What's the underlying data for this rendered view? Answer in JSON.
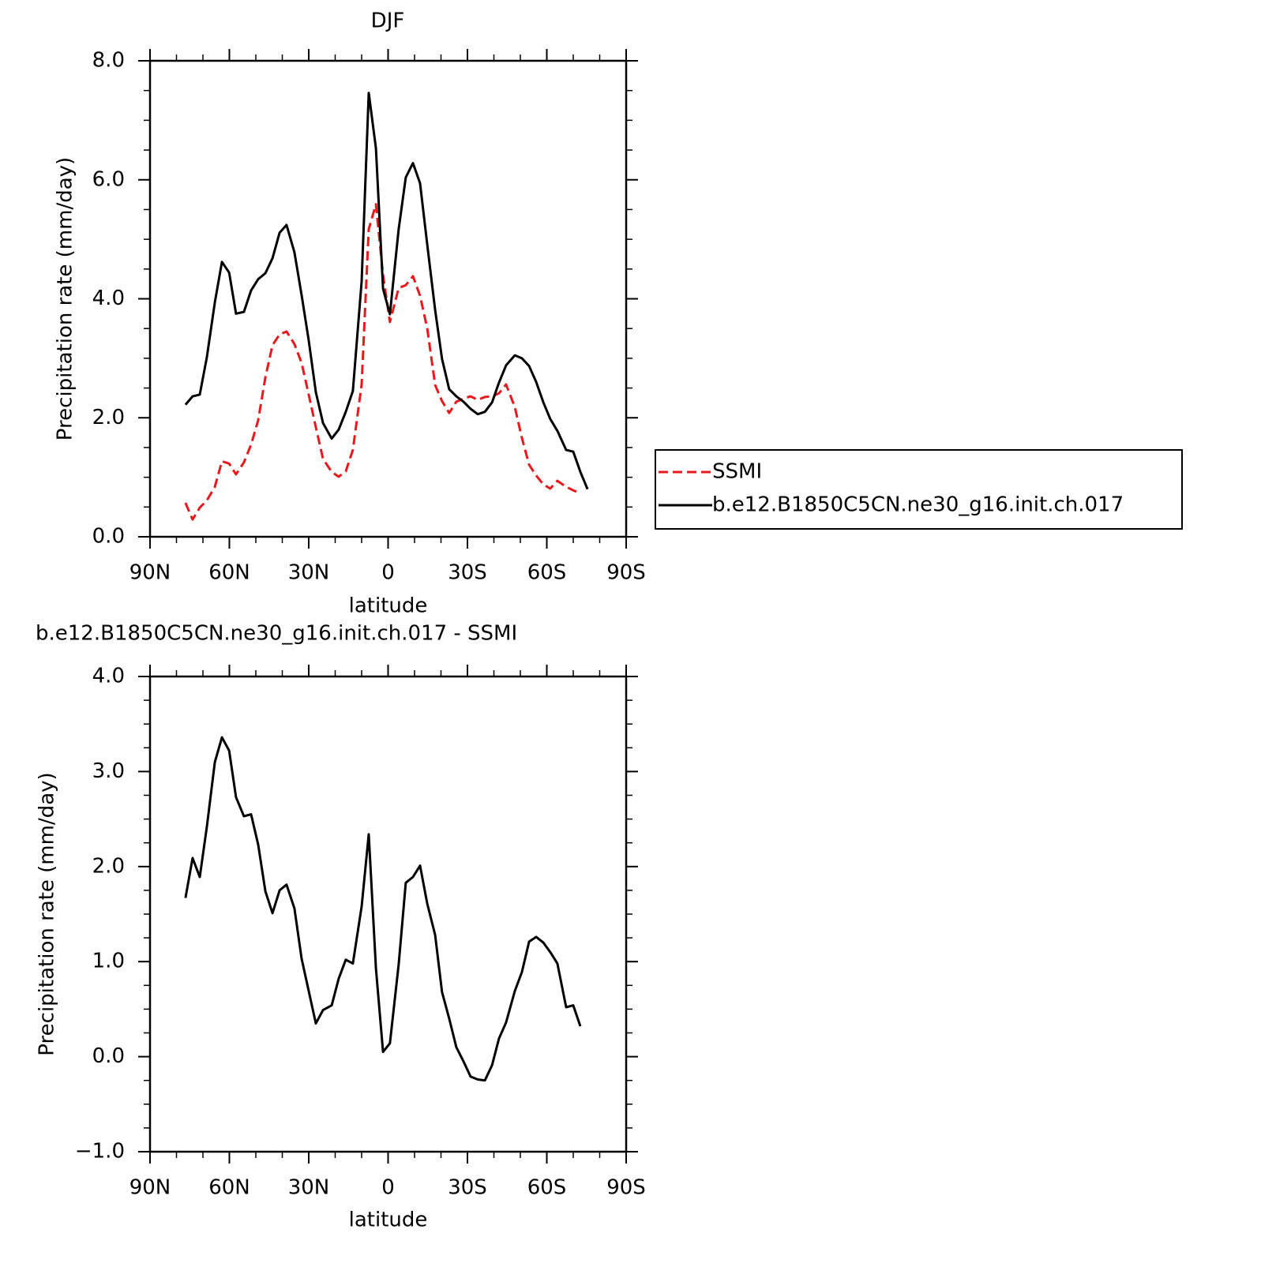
{
  "chart_data": [
    {
      "type": "line",
      "title": "DJF",
      "xlabel": "latitude",
      "ylabel": "Precipitation rate (mm/day)",
      "x": [
        76.6,
        73.9,
        71.2,
        68.5,
        65.5,
        62.8,
        60.1,
        57.5,
        54.5,
        51.8,
        49.1,
        46.4,
        43.7,
        41.0,
        38.4,
        35.4,
        32.7,
        30.0,
        27.3,
        24.6,
        21.3,
        18.7,
        16.0,
        13.3,
        10.0,
        7.3,
        4.6,
        1.9,
        -0.7,
        -4.0,
        -6.7,
        -9.4,
        -12.1,
        -14.8,
        -17.8,
        -20.4,
        -23.1,
        -25.8,
        -28.5,
        -31.2,
        -33.9,
        -36.6,
        -39.3,
        -41.9,
        -44.6,
        -47.9,
        -50.6,
        -53.3,
        -56.0,
        -58.7,
        -61.3,
        -64.0,
        -67.3,
        -70.0,
        -72.7,
        -75.4
      ],
      "series": [
        {
          "name": "SSMI",
          "color": "#e8191c",
          "dash": true,
          "values": [
            0.57,
            0.29,
            0.49,
            0.61,
            0.84,
            1.27,
            1.23,
            1.05,
            1.25,
            1.55,
            1.96,
            2.68,
            3.22,
            3.4,
            3.45,
            3.24,
            2.92,
            2.39,
            1.84,
            1.31,
            1.09,
            1.01,
            1.1,
            1.46,
            2.56,
            5.17,
            5.59,
            4.4,
            3.61,
            4.18,
            4.23,
            4.38,
            4.05,
            3.5,
            2.55,
            2.28,
            2.08,
            2.27,
            2.32,
            2.36,
            2.3,
            2.35,
            2.36,
            2.41,
            2.56,
            2.18,
            1.66,
            1.21,
            1.03,
            0.88,
            0.81,
            0.94,
            0.84,
            0.78,
            0.73,
            null
          ]
        },
        {
          "name": "b.e12.B1850C5CN.ne30_g16.init.ch.017",
          "color": "#000000",
          "dash": false,
          "values": [
            2.22,
            2.36,
            2.39,
            3.02,
            3.94,
            4.62,
            4.44,
            3.75,
            3.78,
            4.14,
            4.33,
            4.43,
            4.68,
            5.11,
            5.24,
            4.78,
            4.06,
            3.3,
            2.43,
            1.91,
            1.65,
            1.8,
            2.1,
            2.45,
            4.29,
            7.46,
            6.53,
            4.17,
            3.74,
            5.17,
            6.04,
            6.28,
            5.94,
            4.91,
            3.81,
            2.99,
            2.48,
            2.36,
            2.27,
            2.15,
            2.06,
            2.1,
            2.26,
            2.59,
            2.88,
            3.05,
            3.0,
            2.87,
            2.6,
            2.26,
            1.98,
            1.78,
            1.46,
            1.43,
            1.09,
            0.8
          ]
        }
      ],
      "xlim": [
        90,
        -90
      ],
      "xticks": [
        {
          "value": 90,
          "label": "90N"
        },
        {
          "value": 60,
          "label": "60N"
        },
        {
          "value": 30,
          "label": "30N"
        },
        0,
        {
          "value": -30,
          "label": "30S"
        },
        {
          "value": -60,
          "label": "60S"
        },
        {
          "value": -90,
          "label": "90S"
        }
      ],
      "ylim": [
        0,
        8
      ],
      "yticks": [
        {
          "value": 0,
          "label": "0.0"
        },
        {
          "value": 2,
          "label": "2.0"
        },
        {
          "value": 4,
          "label": "4.0"
        },
        {
          "value": 6,
          "label": "6.0"
        },
        {
          "value": 8,
          "label": "8.0"
        }
      ],
      "legend": "right"
    },
    {
      "type": "line",
      "title": "b.e12.B1850C5CN.ne30_g16.init.ch.017 - SSMI",
      "xlabel": "latitude",
      "ylabel": "Precipitation rate (mm/day)",
      "x": [
        76.6,
        73.9,
        71.2,
        68.5,
        65.5,
        62.8,
        60.1,
        57.5,
        54.5,
        51.8,
        49.1,
        46.4,
        43.7,
        41.0,
        38.4,
        35.4,
        32.7,
        30.0,
        27.3,
        24.6,
        21.3,
        18.7,
        16.0,
        13.3,
        10.0,
        7.3,
        4.6,
        1.9,
        -0.7,
        -4.0,
        -6.7,
        -9.4,
        -12.1,
        -14.8,
        -17.8,
        -20.4,
        -23.1,
        -25.8,
        -28.5,
        -31.2,
        -33.9,
        -36.6,
        -39.3,
        -41.9,
        -44.6,
        -47.9,
        -50.6,
        -53.3,
        -56.0,
        -58.7,
        -61.3,
        -64.0,
        -67.3,
        -70.0,
        -72.7,
        -75.4
      ],
      "series": [
        {
          "color": "#000000",
          "dash": false,
          "values": [
            1.67,
            2.09,
            1.89,
            2.42,
            3.1,
            3.36,
            3.22,
            2.73,
            2.53,
            2.55,
            2.23,
            1.74,
            1.51,
            1.75,
            1.81,
            1.56,
            1.03,
            0.69,
            0.35,
            0.49,
            0.54,
            0.82,
            1.02,
            0.98,
            1.58,
            2.34,
            0.93,
            0.05,
            0.14,
            0.97,
            1.83,
            1.89,
            2.01,
            1.61,
            1.28,
            0.68,
            0.4,
            0.1,
            -0.05,
            -0.21,
            -0.24,
            -0.25,
            -0.09,
            0.19,
            0.36,
            0.69,
            0.89,
            1.21,
            1.26,
            1.2,
            1.1,
            0.98,
            0.52,
            0.54,
            0.32,
            null
          ]
        }
      ],
      "xlim": [
        90,
        -90
      ],
      "xticks": [
        {
          "value": 90,
          "label": "90N"
        },
        {
          "value": 60,
          "label": "60N"
        },
        {
          "value": 30,
          "label": "30N"
        },
        0,
        {
          "value": -30,
          "label": "30S"
        },
        {
          "value": -60,
          "label": "60S"
        },
        {
          "value": -90,
          "label": "90S"
        }
      ],
      "ylim": [
        -1,
        4
      ],
      "yticks": [
        {
          "value": -1,
          "label": "−1.0"
        },
        {
          "value": 0,
          "label": "0.0"
        },
        {
          "value": 1,
          "label": "1.0"
        },
        {
          "value": 2,
          "label": "2.0"
        },
        {
          "value": 3,
          "label": "3.0"
        },
        {
          "value": 4,
          "label": "4.0"
        }
      ]
    }
  ]
}
